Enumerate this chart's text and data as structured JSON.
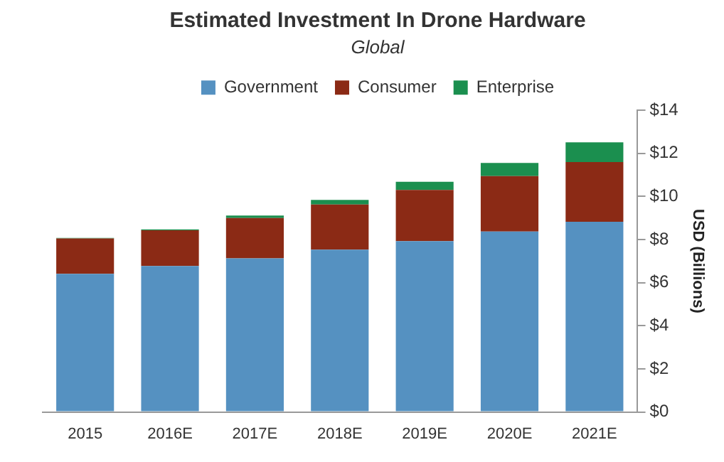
{
  "chart_data": {
    "type": "bar",
    "stacked": true,
    "title": "Estimated Investment In Drone Hardware",
    "subtitle": "Global",
    "ylabel": "USD (Billions)",
    "categories": [
      "2015",
      "2016E",
      "2017E",
      "2018E",
      "2019E",
      "2020E",
      "2021E"
    ],
    "series": [
      {
        "name": "Government",
        "color": "#5591c1",
        "values": [
          6.41,
          6.77,
          7.13,
          7.53,
          7.93,
          8.37,
          8.83
        ]
      },
      {
        "name": "Consumer",
        "color": "#8b2a15",
        "values": [
          1.64,
          1.66,
          1.87,
          2.1,
          2.37,
          2.58,
          2.77
        ]
      },
      {
        "name": "Enterprise",
        "color": "#1b8f4f",
        "values": [
          0.03,
          0.04,
          0.12,
          0.21,
          0.38,
          0.61,
          0.91
        ]
      }
    ],
    "ylim": [
      0,
      14
    ],
    "yticks": [
      {
        "value": 0,
        "label": "$0"
      },
      {
        "value": 2,
        "label": "$2"
      },
      {
        "value": 4,
        "label": "$4"
      },
      {
        "value": 6,
        "label": "$6"
      },
      {
        "value": 8,
        "label": "$8"
      },
      {
        "value": 10,
        "label": "$10"
      },
      {
        "value": 12,
        "label": "$12"
      },
      {
        "value": 14,
        "label": "$14"
      }
    ],
    "grid": false,
    "legend": "top"
  }
}
